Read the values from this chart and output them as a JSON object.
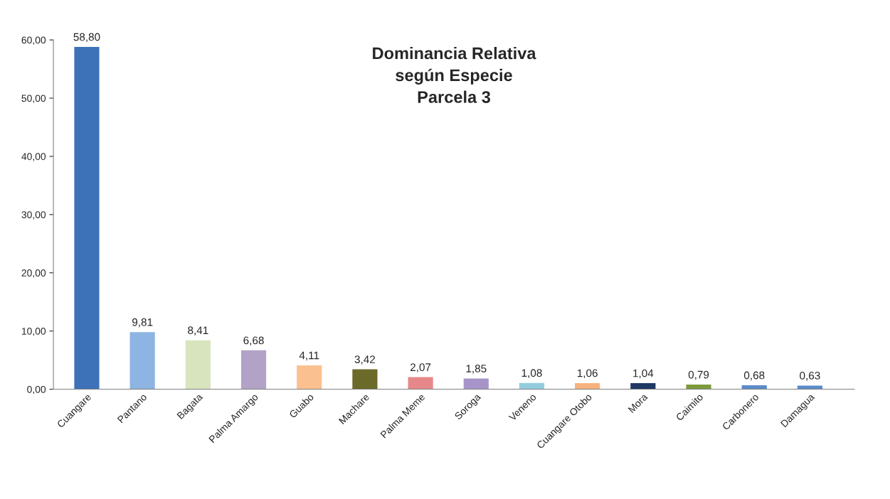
{
  "chart_data": {
    "type": "bar",
    "title": "Dominancia Relativa\nsegún Especie\nParcela 3",
    "categories": [
      "Cuangare",
      "Pantano",
      "Bagata",
      "Palma Amargo",
      "Guabo",
      "Machare",
      "Palma Meme",
      "Soroga",
      "Veneno",
      "Cuangare Otobo",
      "Mora",
      "Caimito",
      "Carbonero",
      "Damagua"
    ],
    "values": [
      58.8,
      9.81,
      8.41,
      6.68,
      4.11,
      3.42,
      2.07,
      1.85,
      1.08,
      1.06,
      1.04,
      0.79,
      0.68,
      0.63
    ],
    "value_labels": [
      "58,80",
      "9,81",
      "8,41",
      "6,68",
      "4,11",
      "3,42",
      "2,07",
      "1,85",
      "1,08",
      "1,06",
      "1,04",
      "0,79",
      "0,68",
      "0,63"
    ],
    "colors": [
      "#3d72b8",
      "#8db4e2",
      "#d7e4bd",
      "#b3a2c7",
      "#fac090",
      "#6b6a2a",
      "#e6888a",
      "#a795c9",
      "#93cddd",
      "#f5b27e",
      "#1f3864",
      "#7d9b3b",
      "#5b8bc9",
      "#5b8bc9"
    ],
    "ylim": [
      0,
      60
    ],
    "yticks": [
      {
        "value": 0,
        "label": "0,00"
      },
      {
        "value": 10,
        "label": "10,00"
      },
      {
        "value": 20,
        "label": "20,00"
      },
      {
        "value": 30,
        "label": "30,00"
      },
      {
        "value": 40,
        "label": "40,00"
      },
      {
        "value": 50,
        "label": "50,00"
      },
      {
        "value": 60,
        "label": "60,00"
      }
    ],
    "grid": false,
    "legend": false
  }
}
